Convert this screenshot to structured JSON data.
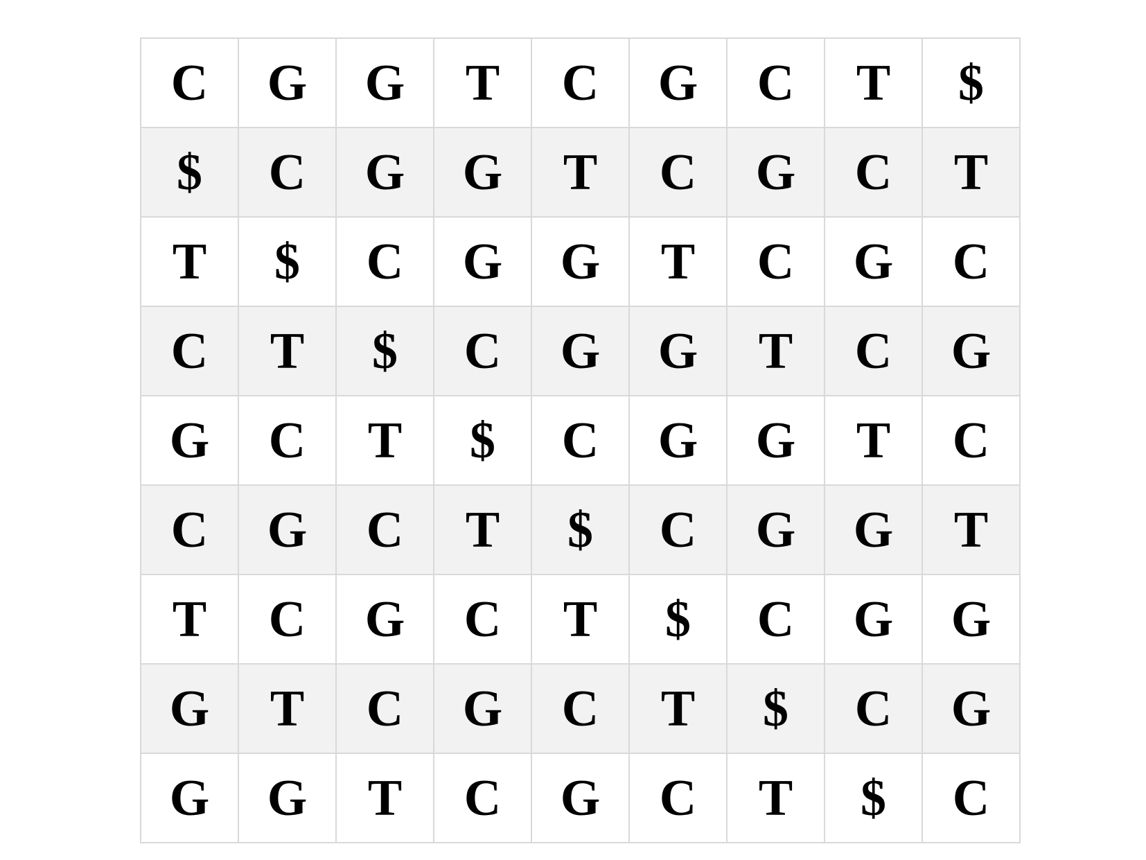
{
  "rows": [
    [
      "C",
      "G",
      "G",
      "T",
      "C",
      "G",
      "C",
      "T",
      "$"
    ],
    [
      "$",
      "C",
      "G",
      "G",
      "T",
      "C",
      "G",
      "C",
      "T"
    ],
    [
      "T",
      "$",
      "C",
      "G",
      "G",
      "T",
      "C",
      "G",
      "C"
    ],
    [
      "C",
      "T",
      "$",
      "C",
      "G",
      "G",
      "T",
      "C",
      "G"
    ],
    [
      "G",
      "C",
      "T",
      "$",
      "C",
      "G",
      "G",
      "T",
      "C"
    ],
    [
      "C",
      "G",
      "C",
      "T",
      "$",
      "C",
      "G",
      "G",
      "T"
    ],
    [
      "T",
      "C",
      "G",
      "C",
      "T",
      "$",
      "C",
      "G",
      "G"
    ],
    [
      "G",
      "T",
      "C",
      "G",
      "C",
      "T",
      "$",
      "C",
      "G"
    ],
    [
      "G",
      "G",
      "T",
      "C",
      "G",
      "C",
      "T",
      "$",
      "C"
    ]
  ],
  "colors": {
    "row_even_bg": "#ffffff",
    "row_odd_bg": "#f2f2f2",
    "border": "#d9d9d9",
    "text": "#000000"
  }
}
